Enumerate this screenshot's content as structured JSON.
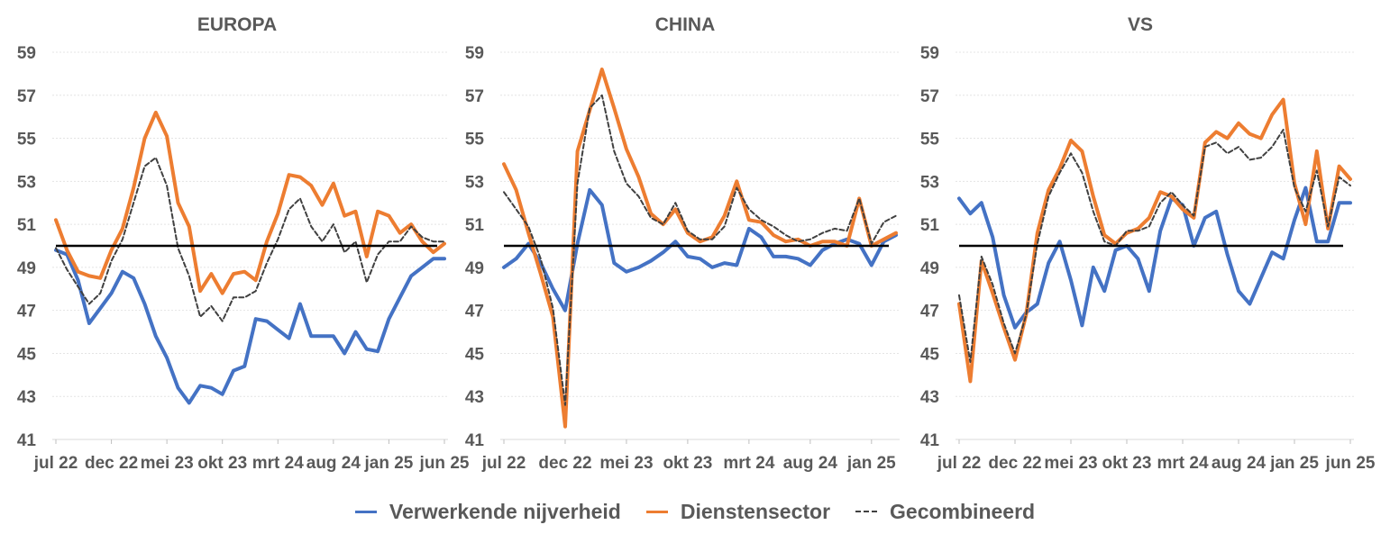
{
  "colors": {
    "manufacturing": "#4472C4",
    "services": "#ED7D31",
    "combined": "#404040",
    "threshold": "#000000"
  },
  "legend": [
    {
      "label": "Verwerkende nijverheid",
      "style": "solid",
      "color": "#4472C4"
    },
    {
      "label": "Dienstensector",
      "style": "solid",
      "color": "#ED7D31"
    },
    {
      "label": "Gecombineerd",
      "style": "dashed",
      "color": "#404040"
    }
  ],
  "chart_data": [
    {
      "type": "line",
      "title": "EUROPA",
      "ylim": [
        41,
        59
      ],
      "yticks": [
        41,
        43,
        45,
        47,
        49,
        51,
        53,
        55,
        57,
        59
      ],
      "xtick_labels": [
        "jul 22",
        "dec 22",
        "mei 23",
        "okt 23",
        "mrt 24",
        "aug 24",
        "jan 25",
        "jun 25"
      ],
      "xtick_index": [
        0,
        5,
        10,
        15,
        20,
        25,
        30,
        35
      ],
      "threshold": 50,
      "grid": true,
      "series": [
        {
          "name": "Verwerkende nijverheid",
          "key": "manufacturing",
          "values": [
            49.8,
            49.6,
            48.4,
            46.4,
            47.1,
            47.8,
            48.8,
            48.5,
            47.3,
            45.8,
            44.8,
            43.4,
            42.7,
            43.5,
            43.4,
            43.1,
            44.2,
            44.4,
            46.6,
            46.5,
            46.1,
            45.7,
            47.3,
            45.8,
            45.8,
            45.8,
            45.0,
            46.0,
            45.2,
            45.1,
            46.6,
            47.6,
            48.6,
            49.0,
            49.4,
            49.4
          ]
        },
        {
          "name": "Dienstensector",
          "key": "services",
          "values": [
            51.2,
            49.8,
            48.8,
            48.6,
            48.5,
            49.8,
            50.8,
            52.7,
            55.0,
            56.2,
            55.1,
            52.0,
            50.9,
            47.9,
            48.7,
            47.8,
            48.7,
            48.8,
            48.4,
            50.2,
            51.5,
            53.3,
            53.2,
            52.8,
            51.9,
            52.9,
            51.4,
            51.6,
            49.5,
            51.6,
            51.4,
            50.6,
            51.0,
            50.2,
            49.7,
            50.1
          ]
        },
        {
          "name": "Gecombineerd",
          "key": "combined",
          "values": [
            49.9,
            48.9,
            48.1,
            47.3,
            47.8,
            49.3,
            50.3,
            52.0,
            53.7,
            54.1,
            52.8,
            49.9,
            48.6,
            46.7,
            47.2,
            46.5,
            47.6,
            47.6,
            47.9,
            49.2,
            50.3,
            51.7,
            52.2,
            50.9,
            50.2,
            51.0,
            49.7,
            50.2,
            48.3,
            49.6,
            50.2,
            50.2,
            50.9,
            50.4,
            50.2,
            50.2
          ]
        }
      ]
    },
    {
      "type": "line",
      "title": "CHINA",
      "ylim": [
        41,
        59
      ],
      "yticks": [
        41,
        43,
        45,
        47,
        49,
        51,
        53,
        55,
        57,
        59
      ],
      "xtick_labels": [
        "jul 22",
        "dec 22",
        "mei 23",
        "okt 23",
        "mrt 24",
        "aug 24",
        "jan 25"
      ],
      "xtick_index": [
        0,
        5,
        10,
        15,
        20,
        25,
        30
      ],
      "threshold": 50,
      "grid": true,
      "series": [
        {
          "name": "Verwerkende nijverheid",
          "key": "manufacturing",
          "values": [
            49.0,
            49.4,
            50.1,
            49.2,
            48.0,
            47.0,
            50.1,
            52.6,
            51.9,
            49.2,
            48.8,
            49.0,
            49.3,
            49.7,
            50.2,
            49.5,
            49.4,
            49.0,
            49.2,
            49.1,
            50.8,
            50.4,
            49.5,
            49.5,
            49.4,
            49.1,
            49.8,
            50.1,
            50.3,
            50.1,
            49.1,
            50.2,
            50.5
          ]
        },
        {
          "name": "Dienstensector",
          "key": "services",
          "values": [
            53.8,
            52.6,
            50.6,
            48.7,
            46.7,
            41.6,
            54.4,
            56.3,
            58.2,
            56.4,
            54.5,
            53.2,
            51.5,
            51.0,
            51.7,
            50.6,
            50.2,
            50.4,
            51.4,
            53.0,
            51.2,
            51.1,
            50.5,
            50.2,
            50.3,
            50.0,
            50.2,
            50.2,
            50.0,
            52.2,
            50.0,
            50.3,
            50.6
          ]
        },
        {
          "name": "Gecombineerd",
          "key": "combined",
          "values": [
            52.5,
            51.7,
            50.9,
            49.4,
            47.1,
            42.6,
            52.9,
            56.4,
            57.0,
            54.4,
            52.9,
            52.3,
            51.3,
            51.0,
            52.0,
            50.7,
            50.3,
            50.3,
            50.9,
            52.7,
            51.7,
            51.2,
            50.9,
            50.5,
            50.2,
            50.3,
            50.6,
            50.8,
            50.7,
            52.2,
            50.1,
            51.1,
            51.4
          ]
        }
      ]
    },
    {
      "type": "line",
      "title": "VS",
      "ylim": [
        41,
        59
      ],
      "yticks": [
        41,
        43,
        45,
        47,
        49,
        51,
        53,
        55,
        57,
        59
      ],
      "xtick_labels": [
        "jul 22",
        "dec 22",
        "mei 23",
        "okt 23",
        "mrt 24",
        "aug 24",
        "jan 25",
        "jun 25"
      ],
      "xtick_index": [
        0,
        5,
        10,
        15,
        20,
        25,
        30,
        35
      ],
      "threshold": 50,
      "grid": true,
      "series": [
        {
          "name": "Verwerkende nijverheid",
          "key": "manufacturing",
          "values": [
            52.2,
            51.5,
            52.0,
            50.4,
            47.7,
            46.2,
            46.9,
            47.3,
            49.2,
            50.2,
            48.4,
            46.3,
            49.0,
            47.9,
            49.8,
            50.0,
            49.4,
            47.9,
            50.7,
            52.2,
            51.9,
            50.0,
            51.3,
            51.6,
            49.6,
            47.9,
            47.3,
            48.5,
            49.7,
            49.4,
            51.2,
            52.7,
            50.2,
            50.2,
            52.0,
            52.0
          ]
        },
        {
          "name": "Dienstensector",
          "key": "services",
          "values": [
            47.3,
            43.7,
            49.3,
            47.8,
            46.2,
            44.7,
            46.8,
            50.6,
            52.6,
            53.6,
            54.9,
            54.4,
            52.3,
            50.5,
            50.1,
            50.6,
            50.8,
            51.3,
            52.5,
            52.3,
            51.7,
            51.3,
            54.8,
            55.3,
            55.0,
            55.7,
            55.2,
            55.0,
            56.1,
            56.8,
            52.9,
            51.0,
            54.4,
            50.8,
            53.7,
            53.1
          ]
        },
        {
          "name": "Gecombineerd",
          "key": "combined",
          "values": [
            47.7,
            44.6,
            49.5,
            48.2,
            46.4,
            45.0,
            46.8,
            50.1,
            52.3,
            53.4,
            54.3,
            53.4,
            51.6,
            50.2,
            50.0,
            50.7,
            50.7,
            50.9,
            52.0,
            52.5,
            51.9,
            51.4,
            54.6,
            54.8,
            54.3,
            54.6,
            54.0,
            54.1,
            54.6,
            55.4,
            52.7,
            51.6,
            53.5,
            50.9,
            53.2,
            52.8
          ]
        }
      ]
    }
  ]
}
